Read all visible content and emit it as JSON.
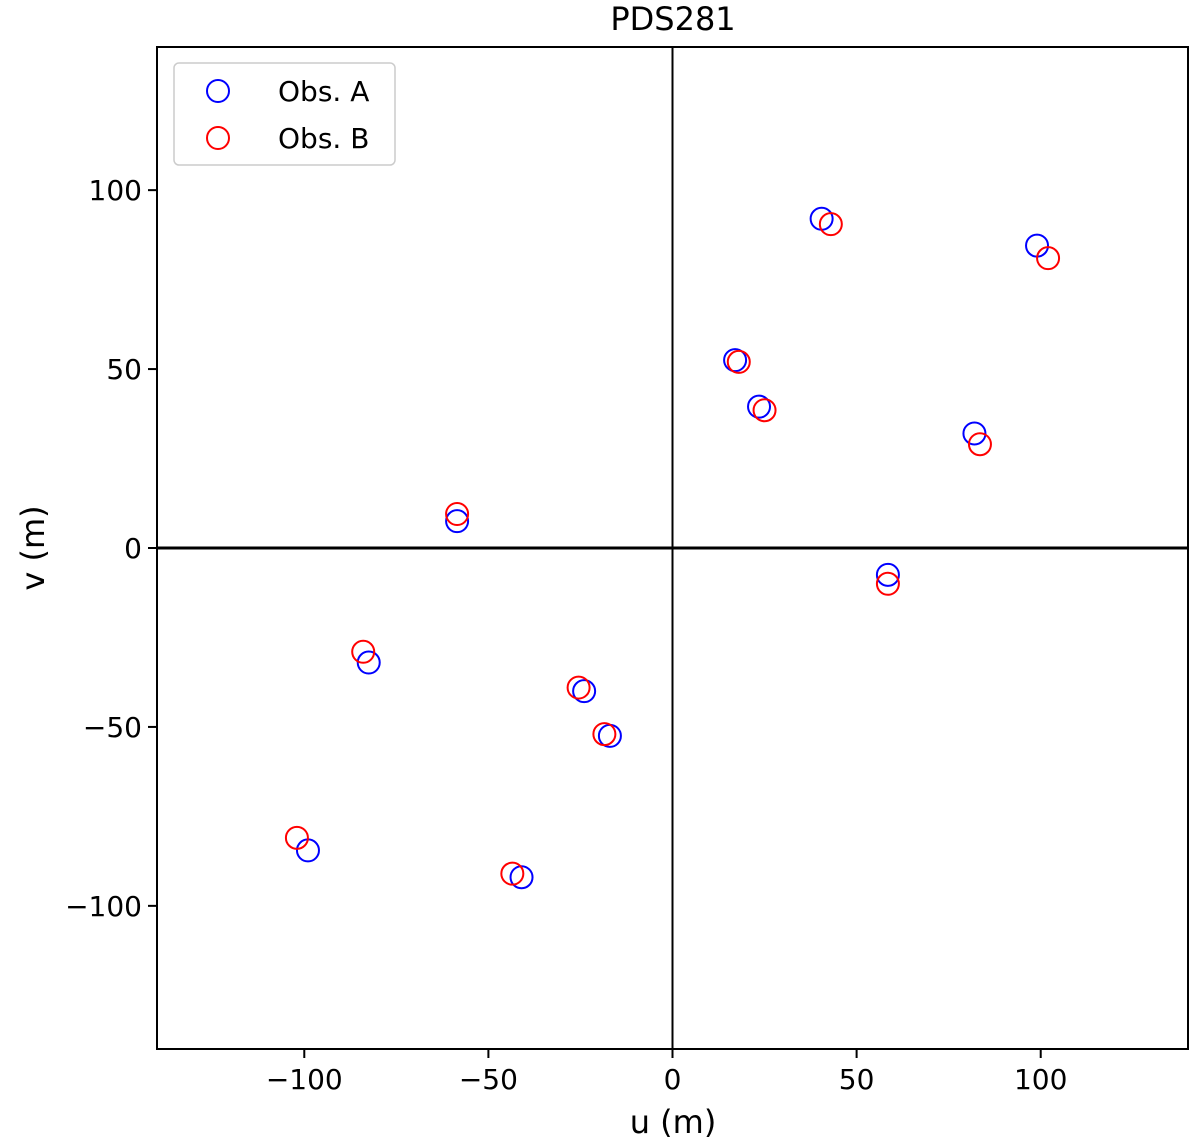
{
  "chart_data": {
    "type": "scatter",
    "title": "PDS281",
    "xlabel": "u (m)",
    "ylabel": "v (m)",
    "xlim": [
      -140,
      140
    ],
    "ylim": [
      -140,
      140
    ],
    "x_ticks": [
      -100,
      -50,
      0,
      50,
      100
    ],
    "y_ticks": [
      -100,
      -50,
      0,
      50,
      100
    ],
    "x_tick_labels": [
      "−100",
      "−50",
      "0",
      "50",
      "100"
    ],
    "y_tick_labels": [
      "−100",
      "−50",
      "0",
      "50",
      "100"
    ],
    "grid": false,
    "zero_lines": true,
    "marker": "open-circle",
    "legend_position": "top-left",
    "series": [
      {
        "name": "Obs. A",
        "color": "#0000ff",
        "points": [
          [
            40.5,
            92
          ],
          [
            99,
            84.5
          ],
          [
            17,
            52.5
          ],
          [
            23.5,
            39.5
          ],
          [
            82,
            32
          ],
          [
            58.5,
            -7.5
          ],
          [
            -58.5,
            7.5
          ],
          [
            -82.5,
            -32
          ],
          [
            -24,
            -40
          ],
          [
            -17,
            -52.5
          ],
          [
            -99,
            -84.5
          ],
          [
            -41,
            -92
          ]
        ]
      },
      {
        "name": "Obs. B",
        "color": "#ff0000",
        "points": [
          [
            43,
            90.5
          ],
          [
            102,
            81
          ],
          [
            18,
            52
          ],
          [
            25,
            38.5
          ],
          [
            83.5,
            29
          ],
          [
            58.5,
            -10
          ],
          [
            -58.5,
            9.5
          ],
          [
            -84,
            -29
          ],
          [
            -25.5,
            -39
          ],
          [
            -18.5,
            -52
          ],
          [
            -102,
            -81
          ],
          [
            -43.5,
            -91
          ]
        ]
      }
    ]
  }
}
